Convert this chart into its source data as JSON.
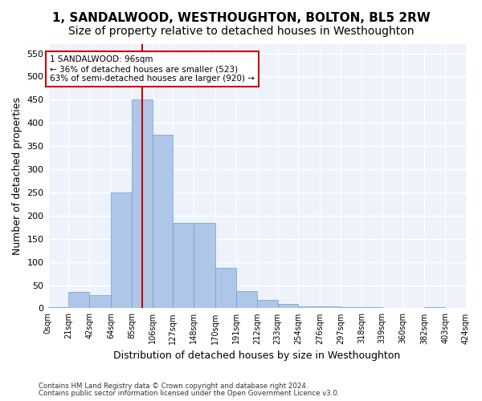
{
  "title": "1, SANDALWOOD, WESTHOUGHTON, BOLTON, BL5 2RW",
  "subtitle": "Size of property relative to detached houses in Westhoughton",
  "xlabel": "Distribution of detached houses by size in Westhoughton",
  "ylabel": "Number of detached properties",
  "footnote1": "Contains HM Land Registry data © Crown copyright and database right 2024.",
  "footnote2": "Contains public sector information licensed under the Open Government Licence v3.0.",
  "bin_labels": [
    "0sqm",
    "21sqm",
    "42sqm",
    "64sqm",
    "85sqm",
    "106sqm",
    "127sqm",
    "148sqm",
    "170sqm",
    "191sqm",
    "212sqm",
    "233sqm",
    "254sqm",
    "276sqm",
    "297sqm",
    "318sqm",
    "339sqm",
    "360sqm",
    "382sqm",
    "403sqm",
    "424sqm"
  ],
  "bin_edges": [
    0,
    21,
    42,
    64,
    85,
    106,
    127,
    148,
    170,
    191,
    212,
    233,
    254,
    276,
    297,
    318,
    339,
    360,
    382,
    403,
    424
  ],
  "bar_heights": [
    2,
    35,
    28,
    250,
    450,
    375,
    185,
    185,
    88,
    37,
    18,
    10,
    5,
    5,
    2,
    2,
    0,
    0,
    3,
    0
  ],
  "bar_color": "#aec6e8",
  "bar_edgecolor": "#6ca0c8",
  "property_size": 96,
  "vline_color": "#cc0000",
  "annotation_text": "1 SANDALWOOD: 96sqm\n← 36% of detached houses are smaller (523)\n63% of semi-detached houses are larger (920) →",
  "annotation_box_edgecolor": "#cc0000",
  "ylim": [
    0,
    570
  ],
  "yticks": [
    0,
    50,
    100,
    150,
    200,
    250,
    300,
    350,
    400,
    450,
    500,
    550
  ],
  "bg_color": "#eef2fb",
  "grid_color": "#ffffff",
  "title_fontsize": 11,
  "subtitle_fontsize": 10,
  "axis_label_fontsize": 9
}
